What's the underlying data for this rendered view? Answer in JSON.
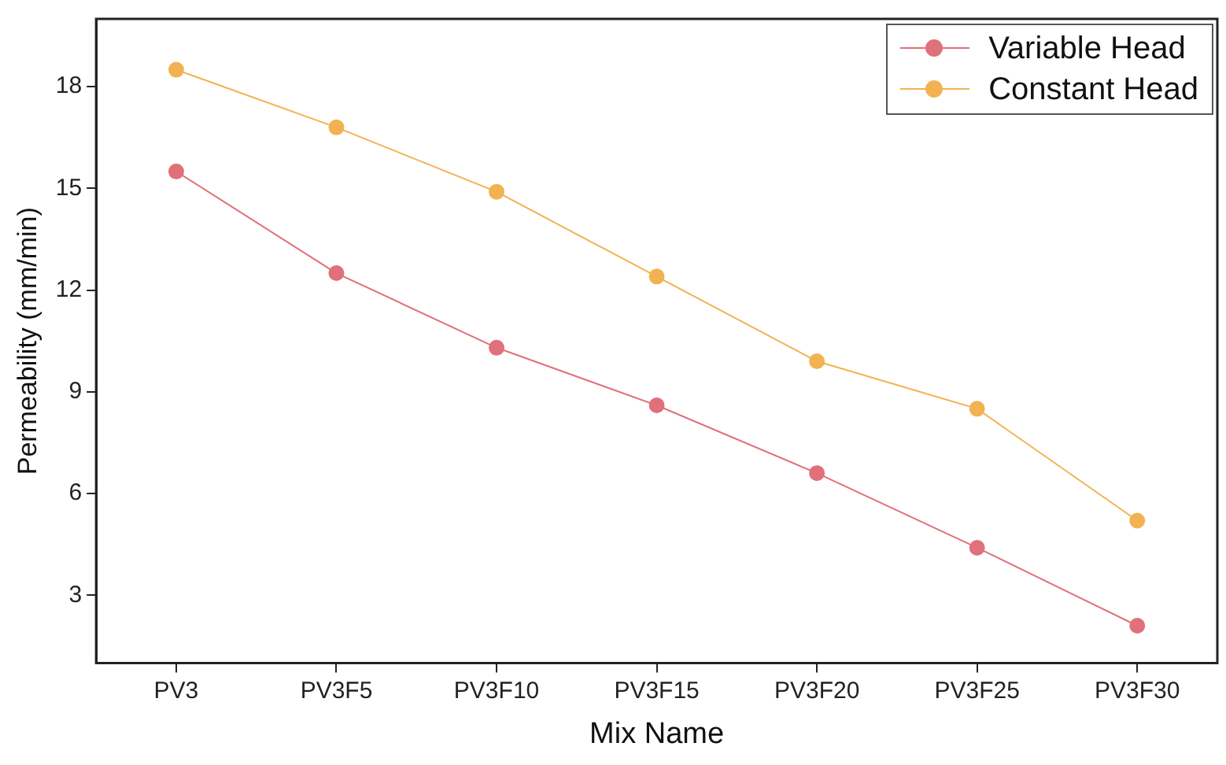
{
  "chart_data": {
    "type": "line",
    "xlabel": "Mix Name",
    "ylabel": "Permeability (mm/min)",
    "categories": [
      "PV3",
      "PV3F5",
      "PV3F10",
      "PV3F15",
      "PV3F20",
      "PV3F25",
      "PV3F30"
    ],
    "series": [
      {
        "name": "Variable Head",
        "color": "#e0707a",
        "values": [
          15.5,
          12.5,
          10.3,
          8.6,
          6.6,
          4.4,
          2.1
        ]
      },
      {
        "name": "Constant Head",
        "color": "#f2b252",
        "values": [
          18.5,
          16.8,
          14.9,
          12.4,
          9.9,
          8.5,
          5.2
        ]
      }
    ],
    "ylim": [
      1,
      20
    ],
    "yticks": [
      3,
      6,
      9,
      12,
      15,
      18
    ],
    "grid": false,
    "legend": "top right",
    "marker": "circle",
    "line_style": "solid"
  }
}
